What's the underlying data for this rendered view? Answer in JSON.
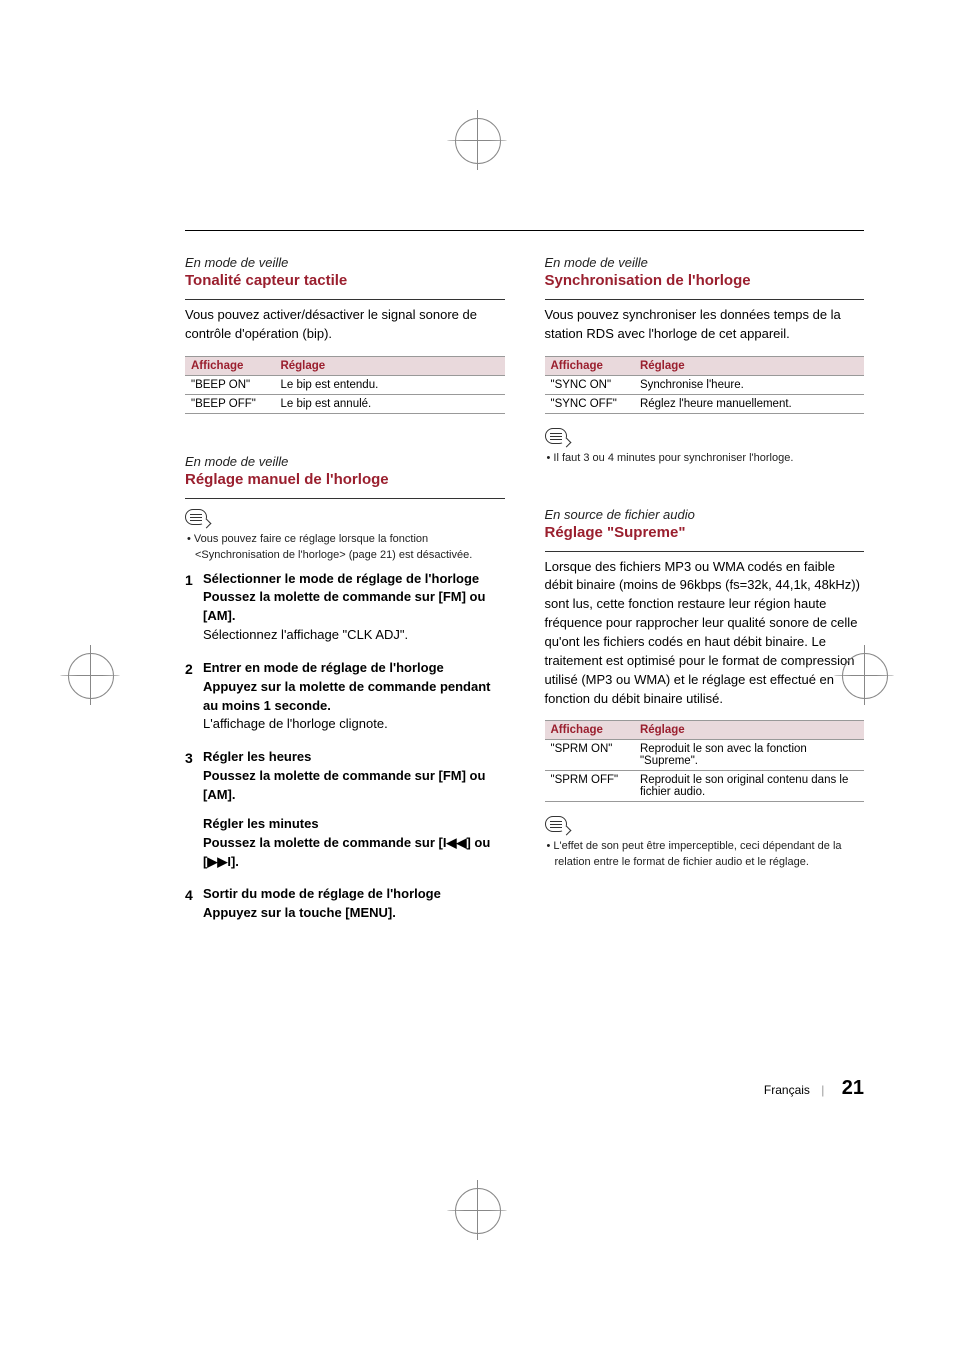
{
  "colors": {
    "accent": "#9a1f2e",
    "header_bg": "#e9d9dc",
    "text": "#000000",
    "muted": "#222222",
    "rule": "#999999"
  },
  "left": {
    "sec1": {
      "context": "En mode de veille",
      "title": "Tonalité capteur tactile",
      "intro": "Vous pouvez activer/désactiver le signal sonore de contrôle d'opération (bip).",
      "table": {
        "h1": "Affichage",
        "h2": "Réglage",
        "rows": [
          {
            "c1": "\"BEEP ON\"",
            "c2": "Le bip est entendu."
          },
          {
            "c1": "\"BEEP OFF\"",
            "c2": "Le bip est annulé."
          }
        ]
      }
    },
    "sec2": {
      "context": "En mode de veille",
      "title": "Réglage manuel de l'horloge",
      "note": "Vous pouvez faire ce réglage lorsque la fonction <Synchronisation de l'horloge> (page 21) est désactivée.",
      "steps": {
        "s1_title": "Sélectionner le mode de réglage de l'horloge",
        "s1_action": "Poussez la molette de commande sur [FM] ou [AM].",
        "s1_result": "Sélectionnez l'affichage \"CLK ADJ\".",
        "s2_title": "Entrer en mode de réglage de l'horloge",
        "s2_action": "Appuyez sur la molette de commande pendant au moins 1 seconde.",
        "s2_result": "L'affichage de l'horloge clignote.",
        "s3_title": "Régler les heures",
        "s3_action": "Poussez la molette de commande sur [FM] ou [AM].",
        "s3b_title": "Régler les minutes",
        "s3b_action_pre": "Poussez la molette de commande sur [",
        "s3b_glyph1": "I◀◀",
        "s3b_mid": "] ou [",
        "s3b_glyph2": "▶▶I",
        "s3b_action_post": "].",
        "s4_title": "Sortir du mode de réglage de l'horloge",
        "s4_action": "Appuyez sur la touche [MENU]."
      }
    }
  },
  "right": {
    "sec1": {
      "context": "En mode de veille",
      "title": "Synchronisation de l'horloge",
      "intro": "Vous pouvez synchroniser les données temps de la station RDS avec l'horloge de cet appareil.",
      "table": {
        "h1": "Affichage",
        "h2": "Réglage",
        "rows": [
          {
            "c1": "\"SYNC ON\"",
            "c2": "Synchronise l'heure."
          },
          {
            "c1": "\"SYNC OFF\"",
            "c2": "Réglez l'heure manuellement."
          }
        ]
      },
      "note": "Il faut 3 ou 4 minutes pour synchroniser l'horloge."
    },
    "sec2": {
      "context": "En source de fichier audio",
      "title": "Réglage \"Supreme\"",
      "intro": "Lorsque des fichiers MP3 ou WMA codés en faible débit binaire (moins de 96kbps (fs=32k, 44,1k, 48kHz)) sont lus, cette fonction restaure leur région haute fréquence pour rapprocher leur qualité sonore de celle qu'ont les fichiers codés en haut débit binaire. Le traitement est optimisé pour le format de compression utilisé (MP3 ou WMA) et le réglage est effectué en fonction du débit binaire utilisé.",
      "table": {
        "h1": "Affichage",
        "h2": "Réglage",
        "rows": [
          {
            "c1": "\"SPRM ON\"",
            "c2": "Reproduit le son avec la fonction \"Supreme\"."
          },
          {
            "c1": "\"SPRM OFF\"",
            "c2": "Reproduit le son original contenu dans le fichier audio."
          }
        ]
      },
      "note": "L'effet de son peut être imperceptible, ceci dépendant de la relation entre le format de fichier audio et le réglage."
    }
  },
  "footer": {
    "lang": "Français",
    "page": "21"
  }
}
